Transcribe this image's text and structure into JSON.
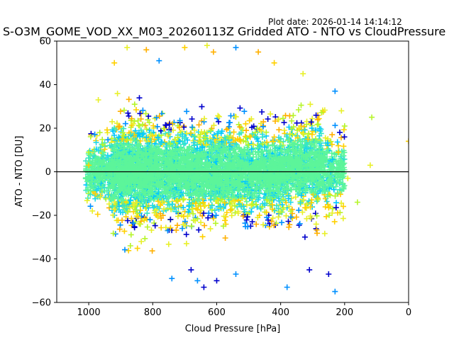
{
  "chart_data": {
    "type": "scatter",
    "title": "S-O3M_GOME_VOD_XX_M03_20260113Z Gridded ATO - NTO vs CloudPressure",
    "plot_date": "Plot date: 2026-01-14 14:14:12",
    "xlabel": "Cloud Pressure [hPa]",
    "ylabel": "ATO - NTO [DU]",
    "xlim": [
      1100,
      0
    ],
    "ylim": [
      -60,
      60
    ],
    "x_ticks": [
      1000,
      800,
      600,
      400,
      200,
      0
    ],
    "y_ticks": [
      -60,
      -40,
      -20,
      0,
      20,
      40,
      60
    ],
    "reference_line_y": 0,
    "marker": "+",
    "color_palette": [
      "#5cf59a",
      "#5cf59a",
      "#5cf59a",
      "#37e6c4",
      "#22d9e8",
      "#00c8ff",
      "#b6f52a",
      "#e8f02a",
      "#ffd000",
      "#ffb000",
      "#0090ff",
      "#0000cc"
    ],
    "clusters": [
      {
        "x_range": [
          1010,
          930
        ],
        "y_center": 0,
        "y_spread": 16,
        "count": 220
      },
      {
        "x_range": [
          930,
          780
        ],
        "y_center": 0,
        "y_spread": 24,
        "count": 950
      },
      {
        "x_range": [
          780,
          550
        ],
        "y_center": 0,
        "y_spread": 22,
        "count": 1150
      },
      {
        "x_range": [
          550,
          380
        ],
        "y_center": 0,
        "y_spread": 22,
        "count": 750
      },
      {
        "x_range": [
          380,
          260
        ],
        "y_center": 2,
        "y_spread": 22,
        "count": 520
      },
      {
        "x_range": [
          260,
          200
        ],
        "y_center": 0,
        "y_spread": 18,
        "count": 140
      }
    ],
    "outliers": [
      {
        "x": 115,
        "y": 25
      },
      {
        "x": 120,
        "y": 3
      },
      {
        "x": 0,
        "y": 14
      },
      {
        "x": 160,
        "y": -14
      },
      {
        "x": 190,
        "y": -3
      },
      {
        "x": 230,
        "y": -55
      },
      {
        "x": 250,
        "y": -47
      },
      {
        "x": 380,
        "y": -53
      },
      {
        "x": 600,
        "y": -50
      },
      {
        "x": 660,
        "y": -50
      },
      {
        "x": 640,
        "y": -53
      },
      {
        "x": 740,
        "y": -49
      },
      {
        "x": 680,
        "y": -45
      },
      {
        "x": 540,
        "y": -47
      },
      {
        "x": 310,
        "y": -45
      },
      {
        "x": 230,
        "y": 37
      },
      {
        "x": 330,
        "y": 45
      },
      {
        "x": 420,
        "y": 50
      },
      {
        "x": 470,
        "y": 55
      },
      {
        "x": 540,
        "y": 57
      },
      {
        "x": 630,
        "y": 58
      },
      {
        "x": 700,
        "y": 57
      },
      {
        "x": 820,
        "y": 56
      },
      {
        "x": 780,
        "y": 51
      },
      {
        "x": 880,
        "y": 57
      },
      {
        "x": 920,
        "y": 50
      },
      {
        "x": 610,
        "y": 55
      },
      {
        "x": 1000,
        "y": 9
      },
      {
        "x": 970,
        "y": 33
      },
      {
        "x": 1000,
        "y": 3
      },
      {
        "x": 200,
        "y": 21
      },
      {
        "x": 210,
        "y": 28
      },
      {
        "x": 220,
        "y": 9
      }
    ]
  }
}
